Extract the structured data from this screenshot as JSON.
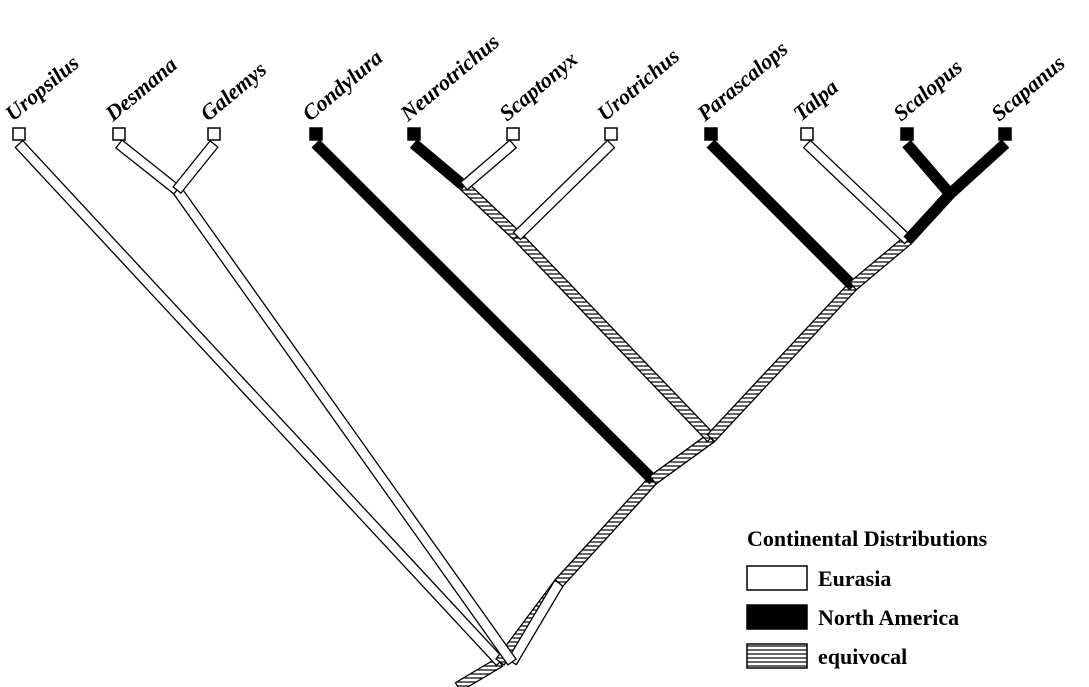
{
  "taxa": [
    {
      "name": "Uropsilus",
      "state": "eurasia"
    },
    {
      "name": "Desmana",
      "state": "eurasia"
    },
    {
      "name": "Galemys",
      "state": "eurasia"
    },
    {
      "name": "Condylura",
      "state": "north_america"
    },
    {
      "name": "Neurotrichus",
      "state": "north_america"
    },
    {
      "name": "Scaptonyx",
      "state": "eurasia"
    },
    {
      "name": "Urotrichus",
      "state": "eurasia"
    },
    {
      "name": "Parascalops",
      "state": "north_america"
    },
    {
      "name": "Talpa",
      "state": "eurasia"
    },
    {
      "name": "Scalopus",
      "state": "north_america"
    },
    {
      "name": "Scapanus",
      "state": "north_america"
    }
  ],
  "legend": {
    "title": "Continental Distributions",
    "items": [
      {
        "key": "eurasia",
        "label": "Eurasia"
      },
      {
        "key": "north_america",
        "label": "North America"
      },
      {
        "key": "equivocal",
        "label": "equivocal"
      }
    ]
  },
  "colors": {
    "line": "#000000",
    "eurasia": "#ffffff",
    "north_america": "#000000"
  }
}
